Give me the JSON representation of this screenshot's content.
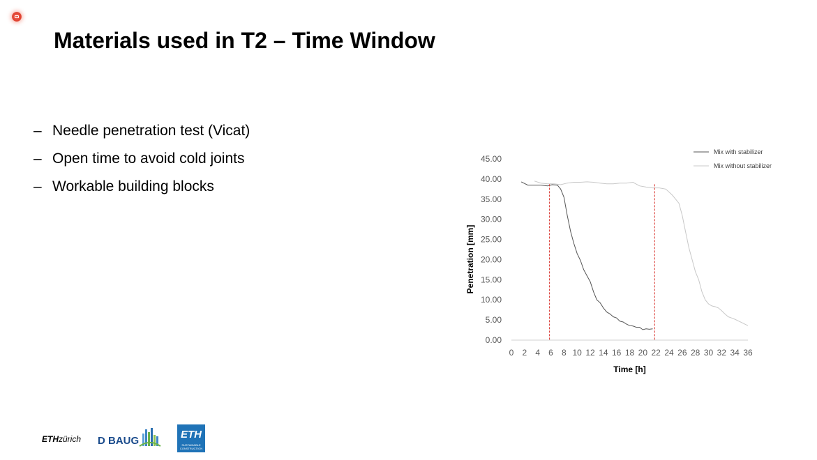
{
  "slide": {
    "title": "Materials used in T2 – Time Window",
    "bullets": [
      {
        "dash": "–",
        "text": "Needle penetration test (Vicat)"
      },
      {
        "dash": "–",
        "text": "Open time to avoid cold joints"
      },
      {
        "dash": "–",
        "text": "Workable building blocks"
      }
    ]
  },
  "footer": {
    "eth_bold": "ETH",
    "eth_rest": "zürich",
    "dbaug": "D BAUG",
    "logo_big": "ETH",
    "logo_small": "SUSTAINABLE CONSTRUCTION"
  },
  "chart_data": {
    "type": "line",
    "xlabel": "Time [h]",
    "ylabel": "Penetration [mm]",
    "xlim": [
      0,
      36
    ],
    "ylim": [
      0,
      45
    ],
    "x_ticks": [
      "0",
      "2",
      "4",
      "6",
      "8",
      "10",
      "12",
      "14",
      "16",
      "18",
      "20",
      "22",
      "24",
      "26",
      "28",
      "30",
      "32",
      "34",
      "36"
    ],
    "y_ticks": [
      "0.00",
      "5.00",
      "10.00",
      "15.00",
      "20.00",
      "25.00",
      "30.00",
      "35.00",
      "40.00",
      "45.00"
    ],
    "grid": false,
    "legend_position": "top-right",
    "colors": {
      "with": "#555555",
      "without": "#c8c8c8",
      "marker": "#d9312a"
    },
    "series": [
      {
        "name": "Mix with stabilizer",
        "x": [
          1.5,
          2.5,
          3.5,
          4.5,
          5.5,
          6.2,
          7,
          7.5,
          8,
          8.5,
          9,
          9.5,
          10,
          10.5,
          11,
          11.5,
          12,
          12.5,
          13,
          13.5,
          14,
          14.5,
          15,
          15.5,
          16,
          16.5,
          17,
          17.5,
          18,
          18.5,
          19,
          19.5,
          20,
          20.5,
          21,
          21.5
        ],
        "y": [
          39.3,
          38.5,
          38.5,
          38.5,
          38.3,
          38.6,
          38.5,
          37.5,
          35.5,
          31,
          27,
          24,
          21.5,
          19.8,
          17.5,
          16,
          14.5,
          12,
          10,
          9.3,
          8,
          7,
          6.5,
          5.8,
          5.5,
          4.7,
          4.5,
          4,
          3.6,
          3.5,
          3.2,
          3.2,
          2.6,
          2.8,
          2.7,
          2.8
        ]
      },
      {
        "name": "Mix without stabilizer",
        "x": [
          3.5,
          4.5,
          5.5,
          6.5,
          7.5,
          8.5,
          9.5,
          10.5,
          11.5,
          12.5,
          13.5,
          14.5,
          15.5,
          16.5,
          17.5,
          18.5,
          19.5,
          20.5,
          21.5,
          22.5,
          23.5,
          24.5,
          25.5,
          26,
          26.5,
          27,
          27.5,
          28,
          28.5,
          29,
          29.5,
          30,
          30.5,
          31,
          31.5,
          32,
          32.5,
          33,
          33.5,
          34,
          34.5,
          35,
          35.5,
          36
        ],
        "y": [
          39.5,
          39,
          38.8,
          38.8,
          38.6,
          39,
          39.2,
          39.2,
          39.3,
          39.2,
          39,
          38.8,
          38.8,
          39,
          39,
          39.2,
          38.3,
          38,
          37.8,
          37.8,
          37.5,
          36,
          34,
          31,
          27,
          23,
          20,
          17,
          15,
          12,
          10,
          9,
          8.5,
          8.3,
          8,
          7.3,
          6.5,
          5.8,
          5.5,
          5.2,
          4.8,
          4.4,
          4,
          3.6
        ]
      }
    ],
    "markers": [
      5.8,
      21.8
    ]
  }
}
